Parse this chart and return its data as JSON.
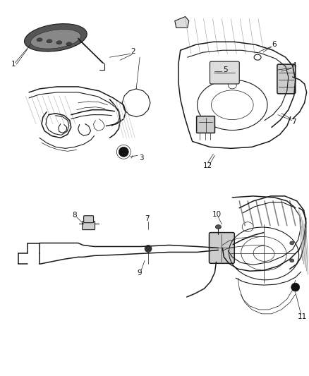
{
  "bg_color": "#ffffff",
  "fig_width": 4.38,
  "fig_height": 5.33,
  "dpi": 100,
  "line_color": "#1a1a1a",
  "label_color": "#111111",
  "label_fontsize": 7.5,
  "gray_fill": "#c8c8c8",
  "dark_fill": "#3a3a3a",
  "mid_gray": "#888888",
  "light_gray": "#dddddd",
  "panel_gray": "#aaaaaa"
}
